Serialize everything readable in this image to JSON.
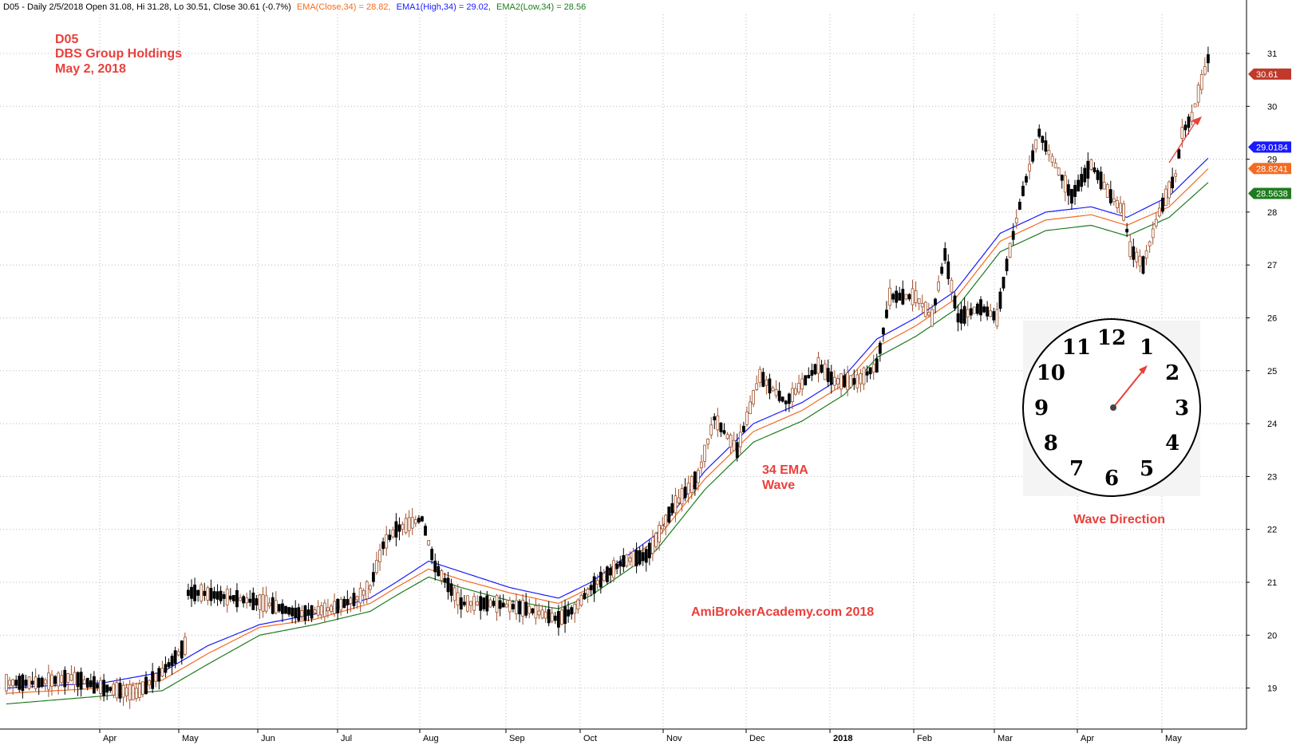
{
  "header": {
    "prefix": "D05 - Daily 2/5/2018 Open 31.08, Hi 31.28, Lo 30.51, Close 30.61 (-0.7%)",
    "ema_close": "EMA(Close,34) = 28.82,",
    "ema_high": "EMA1(High,34) = 29.02,",
    "ema_low": "EMA2(Low,34) = 28.56"
  },
  "annotations": {
    "ticker": "D05",
    "company": "DBS Group Holdings",
    "date": "May 2, 2018",
    "wave_line1": "34 EMA",
    "wave_line2": "Wave",
    "watermark": "AmiBrokerAcademy.com   2018",
    "wave_direction": "Wave Direction"
  },
  "colors": {
    "up_candle": "#a0522d",
    "down_candle": "#000000",
    "ema_close": "#f26b21",
    "ema_high": "#1a1aff",
    "ema_low": "#1e7b1e",
    "annotation": "#e8413c",
    "grid": "#b8b8b8"
  },
  "clock": {
    "numbers": [
      "12",
      "1",
      "2",
      "3",
      "4",
      "5",
      "6",
      "7",
      "8",
      "9",
      "10",
      "11"
    ],
    "hand_points_to": "1"
  },
  "price_labels": [
    {
      "text": "30.61",
      "color": "#c0392b"
    },
    {
      "text": "29.0184",
      "color": "#1a1aff"
    },
    {
      "text": "28.8241",
      "color": "#f26b21"
    },
    {
      "text": "28.5638",
      "color": "#1e7b1e"
    }
  ],
  "chart_data": {
    "type": "candlestick",
    "ylim": [
      18.4,
      31.5
    ],
    "y_ticks": [
      19,
      20,
      21,
      22,
      23,
      24,
      25,
      26,
      27,
      28,
      29,
      30,
      31
    ],
    "x_month_labels": [
      "Apr",
      "May",
      "Jun",
      "Jul",
      "Aug",
      "Sep",
      "Oct",
      "Nov",
      "Dec",
      "2018",
      "Feb",
      "Mar",
      "Apr",
      "May"
    ],
    "last_close": 30.61,
    "ema_close_last": 28.8241,
    "ema_high_last": 29.0184,
    "ema_low_last": 28.5638,
    "ema_high_anchors": [
      [
        0,
        19.0
      ],
      [
        30,
        19.1
      ],
      [
        48,
        19.3
      ],
      [
        62,
        19.8
      ],
      [
        78,
        20.2
      ],
      [
        95,
        20.4
      ],
      [
        112,
        20.7
      ],
      [
        120,
        21.0
      ],
      [
        130,
        21.4
      ],
      [
        140,
        21.2
      ],
      [
        155,
        20.9
      ],
      [
        170,
        20.7
      ],
      [
        180,
        21.0
      ],
      [
        200,
        21.9
      ],
      [
        215,
        23.1
      ],
      [
        230,
        24.0
      ],
      [
        245,
        24.4
      ],
      [
        258,
        24.9
      ],
      [
        268,
        25.6
      ],
      [
        280,
        26.0
      ],
      [
        292,
        26.5
      ],
      [
        306,
        27.6
      ],
      [
        320,
        28.0
      ],
      [
        334,
        28.1
      ],
      [
        345,
        27.9
      ],
      [
        358,
        28.3
      ],
      [
        370,
        29.02
      ]
    ],
    "ema_close_anchors": [
      [
        0,
        18.9
      ],
      [
        30,
        19.0
      ],
      [
        48,
        19.15
      ],
      [
        62,
        19.65
      ],
      [
        78,
        20.15
      ],
      [
        95,
        20.3
      ],
      [
        112,
        20.6
      ],
      [
        120,
        20.9
      ],
      [
        130,
        21.25
      ],
      [
        140,
        21.05
      ],
      [
        155,
        20.8
      ],
      [
        170,
        20.6
      ],
      [
        180,
        20.9
      ],
      [
        200,
        21.8
      ],
      [
        215,
        22.95
      ],
      [
        230,
        23.85
      ],
      [
        245,
        24.25
      ],
      [
        258,
        24.75
      ],
      [
        268,
        25.45
      ],
      [
        280,
        25.85
      ],
      [
        292,
        26.35
      ],
      [
        306,
        27.45
      ],
      [
        320,
        27.85
      ],
      [
        334,
        27.95
      ],
      [
        345,
        27.75
      ],
      [
        358,
        28.1
      ],
      [
        370,
        28.82
      ]
    ],
    "ema_low_anchors": [
      [
        0,
        18.7
      ],
      [
        30,
        18.85
      ],
      [
        48,
        18.95
      ],
      [
        62,
        19.45
      ],
      [
        78,
        20.0
      ],
      [
        95,
        20.2
      ],
      [
        112,
        20.45
      ],
      [
        120,
        20.75
      ],
      [
        130,
        21.1
      ],
      [
        140,
        20.9
      ],
      [
        155,
        20.65
      ],
      [
        170,
        20.5
      ],
      [
        180,
        20.75
      ],
      [
        200,
        21.6
      ],
      [
        215,
        22.75
      ],
      [
        230,
        23.65
      ],
      [
        245,
        24.05
      ],
      [
        258,
        24.55
      ],
      [
        268,
        25.25
      ],
      [
        280,
        25.65
      ],
      [
        292,
        26.15
      ],
      [
        306,
        27.25
      ],
      [
        320,
        27.65
      ],
      [
        334,
        27.75
      ],
      [
        345,
        27.55
      ],
      [
        358,
        27.9
      ],
      [
        370,
        28.56
      ]
    ],
    "price_anchors": [
      [
        0,
        19.1
      ],
      [
        10,
        19.1
      ],
      [
        20,
        19.2
      ],
      [
        30,
        19.0
      ],
      [
        40,
        18.9
      ],
      [
        48,
        19.3
      ],
      [
        55,
        19.8
      ],
      [
        56,
        20.8
      ],
      [
        60,
        20.8
      ],
      [
        70,
        20.7
      ],
      [
        80,
        20.6
      ],
      [
        90,
        20.4
      ],
      [
        100,
        20.5
      ],
      [
        108,
        20.7
      ],
      [
        112,
        20.9
      ],
      [
        116,
        21.7
      ],
      [
        120,
        22.0
      ],
      [
        128,
        22.2
      ],
      [
        132,
        21.3
      ],
      [
        140,
        20.6
      ],
      [
        150,
        20.6
      ],
      [
        160,
        20.5
      ],
      [
        170,
        20.3
      ],
      [
        175,
        20.5
      ],
      [
        180,
        20.9
      ],
      [
        190,
        21.4
      ],
      [
        197,
        21.5
      ],
      [
        200,
        21.8
      ],
      [
        205,
        22.4
      ],
      [
        213,
        23.0
      ],
      [
        218,
        24.1
      ],
      [
        225,
        23.5
      ],
      [
        232,
        24.9
      ],
      [
        240,
        24.4
      ],
      [
        250,
        25.1
      ],
      [
        255,
        24.8
      ],
      [
        262,
        24.8
      ],
      [
        268,
        25.1
      ],
      [
        272,
        26.4
      ],
      [
        280,
        26.4
      ],
      [
        285,
        26.0
      ],
      [
        289,
        27.2
      ],
      [
        293,
        26.0
      ],
      [
        300,
        26.2
      ],
      [
        305,
        26.0
      ],
      [
        308,
        27.0
      ],
      [
        313,
        28.4
      ],
      [
        318,
        29.5
      ],
      [
        322,
        29.0
      ],
      [
        328,
        28.3
      ],
      [
        334,
        28.9
      ],
      [
        340,
        28.3
      ],
      [
        344,
        28.0
      ],
      [
        346,
        27.3
      ],
      [
        350,
        27.0
      ],
      [
        352,
        27.4
      ],
      [
        355,
        28.0
      ],
      [
        360,
        28.7
      ],
      [
        362,
        29.5
      ],
      [
        365,
        29.8
      ],
      [
        370,
        30.9
      ]
    ],
    "n_bars": 371
  }
}
